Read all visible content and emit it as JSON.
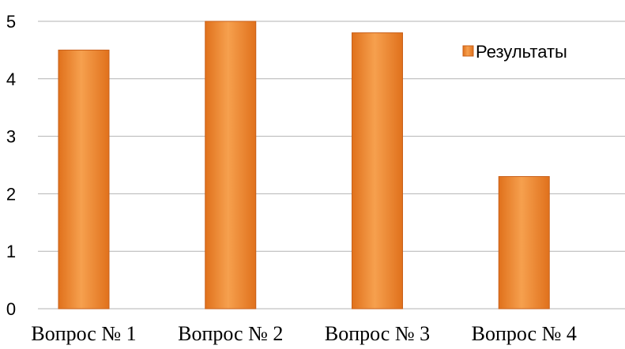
{
  "chart_data": {
    "type": "bar",
    "categories": [
      "Вопрос № 1",
      "Вопрос № 2",
      "Вопрос № 3",
      "Вопрос № 4"
    ],
    "series": [
      {
        "name": "Результаты",
        "values": [
          4.5,
          5.0,
          4.8,
          2.3
        ]
      }
    ],
    "ylim": [
      0,
      5
    ],
    "yticks": [
      0,
      1,
      2,
      3,
      4,
      5
    ],
    "grid": true,
    "legend": "top-right",
    "colors": {
      "bar_light": "#F6A04E",
      "bar_dark": "#E0711C",
      "bar_edge": "#C8601A",
      "grid": "#B3B3B3"
    }
  }
}
